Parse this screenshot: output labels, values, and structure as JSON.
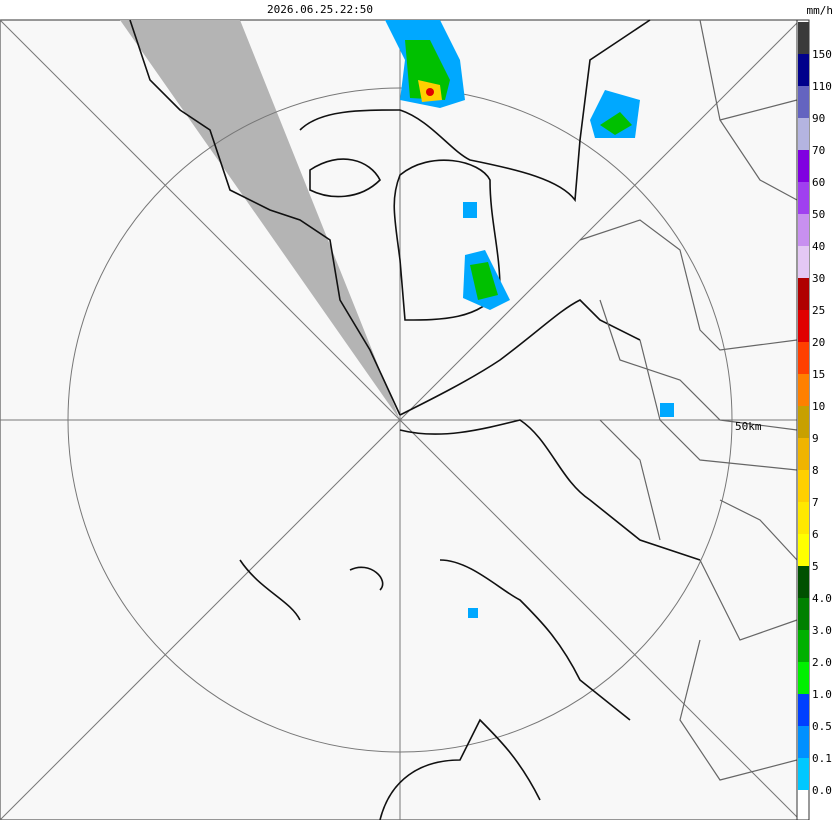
{
  "header": {
    "timestamp": "2026.06.25.22:50",
    "unit": "mm/h"
  },
  "map": {
    "range_label": "50km"
  },
  "legend": [
    {
      "label": "150",
      "color": "#3a3a3a"
    },
    {
      "label": "110",
      "color": "#00008b"
    },
    {
      "label": "90",
      "color": "#6464c0"
    },
    {
      "label": "70",
      "color": "#b4b4e0"
    },
    {
      "label": "60",
      "color": "#8000e0"
    },
    {
      "label": "50",
      "color": "#a040f0"
    },
    {
      "label": "40",
      "color": "#c890f0"
    },
    {
      "label": "30",
      "color": "#e4c8f4"
    },
    {
      "label": "25",
      "color": "#b00000"
    },
    {
      "label": "20",
      "color": "#e00000"
    },
    {
      "label": "15",
      "color": "#ff4000"
    },
    {
      "label": "10",
      "color": "#ff8000"
    },
    {
      "label": "9",
      "color": "#c8a000"
    },
    {
      "label": "8",
      "color": "#f0b400"
    },
    {
      "label": "7",
      "color": "#ffd000"
    },
    {
      "label": "6",
      "color": "#ffe800"
    },
    {
      "label": "5",
      "color": "#ffff00"
    },
    {
      "label": "4.0",
      "color": "#005000"
    },
    {
      "label": "3.0",
      "color": "#008000"
    },
    {
      "label": "2.0",
      "color": "#00b000"
    },
    {
      "label": "1.0",
      "color": "#00f000"
    },
    {
      "label": "0.5",
      "color": "#0040ff"
    },
    {
      "label": "0.1",
      "color": "#0090ff"
    },
    {
      "label": "0.0",
      "color": "#00c8ff"
    }
  ]
}
